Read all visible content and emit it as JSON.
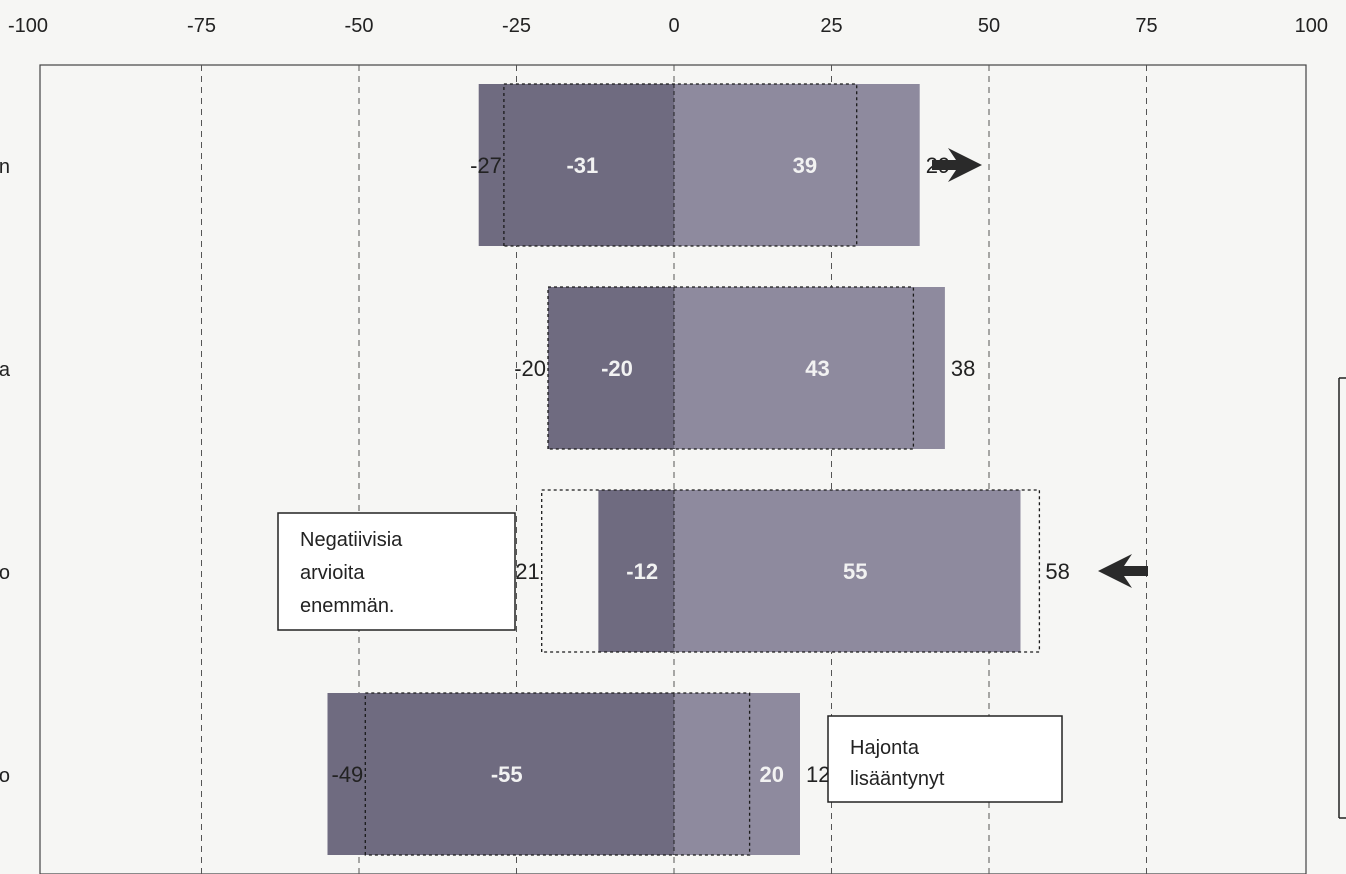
{
  "chart_data": {
    "type": "bar",
    "orientation": "horizontal",
    "stacked": "diverging",
    "xlim": [
      -100,
      100
    ],
    "x_ticks": [
      -100,
      -75,
      -50,
      -25,
      0,
      25,
      50,
      75,
      100
    ],
    "grid": "vertical dashed",
    "categories": [
      "n",
      "a",
      "o",
      "o"
    ],
    "series": [
      {
        "values": [
          -31,
          -20,
          -12,
          -55
        ]
      },
      {
        "values": [
          39,
          43,
          55,
          20
        ]
      }
    ],
    "previous_values": {
      "negative": [
        -27,
        -20,
        -21,
        -49
      ],
      "positive": [
        29,
        38,
        58,
        12
      ]
    },
    "trend_arrows": [
      "right",
      "",
      "left",
      ""
    ],
    "annotations": [
      {
        "text": [
          "Negatiivisia",
          "arvioita",
          "enemmän."
        ]
      },
      {
        "text": [
          "Hajonta",
          "lisääntynyt"
        ]
      }
    ],
    "colors": {
      "negative_bar": "#6f6b80",
      "positive_bar": "#8e8a9e",
      "background": "#f6f6f4",
      "arrow": "#2a2a2a"
    }
  }
}
